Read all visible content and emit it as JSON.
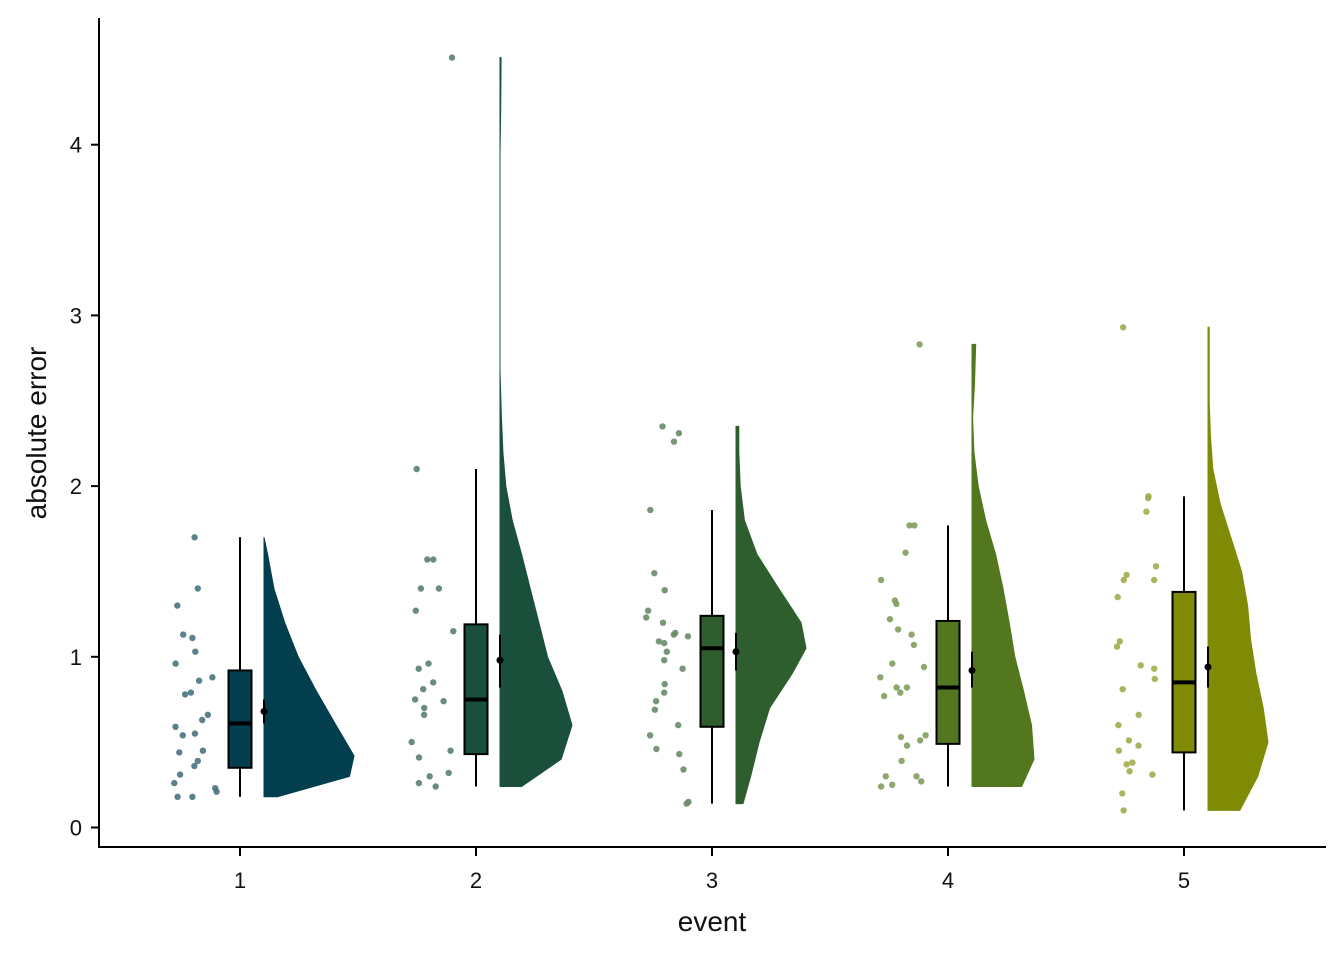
{
  "chart_data": {
    "type": "raincloud",
    "title": "",
    "xlabel": "event",
    "ylabel": "absolute error",
    "categories": [
      "1",
      "2",
      "3",
      "4",
      "5"
    ],
    "y_ticks": [
      "0",
      "1",
      "2",
      "3",
      "4"
    ],
    "ylim": [
      -0.12,
      4.75
    ],
    "grid": false,
    "legend": "none",
    "colors": [
      "#023e4d",
      "#1a4f3b",
      "#2f5e2e",
      "#52771f",
      "#7f8b05"
    ],
    "groups": [
      {
        "event": "1",
        "points": [
          1.7,
          1.4,
          1.3,
          1.13,
          1.11,
          1.03,
          0.96,
          0.88,
          0.86,
          0.79,
          0.78,
          0.66,
          0.63,
          0.59,
          0.55,
          0.54,
          0.45,
          0.44,
          0.39,
          0.36,
          0.31,
          0.26,
          0.23,
          0.21,
          0.18,
          0.18
        ],
        "box": {
          "min": 0.18,
          "q1": 0.35,
          "median": 0.61,
          "q3": 0.92,
          "max": 1.7
        },
        "mean": 0.68,
        "mean_ci": [
          0.61,
          0.75
        ],
        "density_profile": [
          [
            0.18,
            0.0
          ],
          [
            0.18,
            0.15
          ],
          [
            0.3,
            0.95
          ],
          [
            0.42,
            1.0
          ],
          [
            0.6,
            0.8
          ],
          [
            0.8,
            0.58
          ],
          [
            1.0,
            0.38
          ],
          [
            1.2,
            0.23
          ],
          [
            1.4,
            0.11
          ],
          [
            1.6,
            0.04
          ],
          [
            1.7,
            0.0
          ]
        ]
      },
      {
        "event": "2",
        "points": [
          4.51,
          2.1,
          1.57,
          1.57,
          1.4,
          1.4,
          1.27,
          1.15,
          0.96,
          0.93,
          0.85,
          0.81,
          0.75,
          0.74,
          0.7,
          0.66,
          0.5,
          0.45,
          0.41,
          0.32,
          0.3,
          0.26,
          0.24
        ],
        "box": {
          "min": 0.24,
          "q1": 0.43,
          "median": 0.75,
          "q3": 1.19,
          "max": 2.1
        },
        "mean": 0.98,
        "mean_ci": [
          0.82,
          1.13
        ],
        "density_profile": [
          [
            0.24,
            0.0
          ],
          [
            0.24,
            0.3
          ],
          [
            0.4,
            0.85
          ],
          [
            0.6,
            1.0
          ],
          [
            0.8,
            0.86
          ],
          [
            1.0,
            0.66
          ],
          [
            1.2,
            0.54
          ],
          [
            1.4,
            0.42
          ],
          [
            1.6,
            0.3
          ],
          [
            1.8,
            0.17
          ],
          [
            2.0,
            0.08
          ],
          [
            2.2,
            0.04
          ],
          [
            2.4,
            0.02
          ],
          [
            2.68,
            0.0
          ],
          [
            3.94,
            0.0
          ],
          [
            4.2,
            0.01
          ],
          [
            4.51,
            0.015
          ]
        ]
      },
      {
        "event": "3",
        "points": [
          2.35,
          2.31,
          2.26,
          1.86,
          1.49,
          1.39,
          1.27,
          1.23,
          1.2,
          1.14,
          1.13,
          1.12,
          1.09,
          1.08,
          1.03,
          0.98,
          0.93,
          0.84,
          0.79,
          0.74,
          0.69,
          0.6,
          0.54,
          0.46,
          0.43,
          0.34,
          0.15,
          0.14
        ],
        "box": {
          "min": 0.14,
          "q1": 0.59,
          "median": 1.05,
          "q3": 1.24,
          "max": 1.86
        },
        "mean": 1.03,
        "mean_ci": [
          0.92,
          1.14
        ],
        "density_profile": [
          [
            0.14,
            0.0
          ],
          [
            0.14,
            0.1
          ],
          [
            0.3,
            0.21
          ],
          [
            0.5,
            0.33
          ],
          [
            0.7,
            0.48
          ],
          [
            0.9,
            0.8
          ],
          [
            1.05,
            1.0
          ],
          [
            1.2,
            0.93
          ],
          [
            1.4,
            0.61
          ],
          [
            1.6,
            0.3
          ],
          [
            1.8,
            0.12
          ],
          [
            2.0,
            0.06
          ],
          [
            2.2,
            0.04
          ],
          [
            2.35,
            0.04
          ],
          [
            2.35,
            0.0
          ]
        ]
      },
      {
        "event": "4",
        "points": [
          2.83,
          1.77,
          1.77,
          1.61,
          1.45,
          1.33,
          1.31,
          1.22,
          1.16,
          1.13,
          1.07,
          0.96,
          0.94,
          0.88,
          0.82,
          0.82,
          0.79,
          0.77,
          0.54,
          0.53,
          0.51,
          0.48,
          0.39,
          0.3,
          0.3,
          0.27,
          0.25,
          0.24
        ],
        "box": {
          "min": 0.24,
          "q1": 0.49,
          "median": 0.82,
          "q3": 1.21,
          "max": 1.77
        },
        "mean": 0.92,
        "mean_ci": [
          0.82,
          1.03
        ],
        "density_profile": [
          [
            0.24,
            0.0
          ],
          [
            0.24,
            0.8
          ],
          [
            0.4,
            1.0
          ],
          [
            0.6,
            0.96
          ],
          [
            0.8,
            0.83
          ],
          [
            1.0,
            0.69
          ],
          [
            1.2,
            0.6
          ],
          [
            1.4,
            0.5
          ],
          [
            1.6,
            0.38
          ],
          [
            1.8,
            0.22
          ],
          [
            2.0,
            0.1
          ],
          [
            2.2,
            0.03
          ],
          [
            2.4,
            0.01
          ],
          [
            2.6,
            0.04
          ],
          [
            2.83,
            0.06
          ]
        ]
      },
      {
        "event": "5",
        "points": [
          2.93,
          1.94,
          1.93,
          1.85,
          1.53,
          1.48,
          1.45,
          1.45,
          1.35,
          1.09,
          1.06,
          0.95,
          0.93,
          0.87,
          0.81,
          0.66,
          0.6,
          0.51,
          0.48,
          0.45,
          0.38,
          0.37,
          0.33,
          0.31,
          0.2,
          0.1
        ],
        "box": {
          "min": 0.1,
          "q1": 0.44,
          "median": 0.85,
          "q3": 1.38,
          "max": 1.94
        },
        "mean": 0.94,
        "mean_ci": [
          0.82,
          1.06
        ],
        "density_profile": [
          [
            0.1,
            0.0
          ],
          [
            0.1,
            0.53
          ],
          [
            0.3,
            0.83
          ],
          [
            0.5,
            1.0
          ],
          [
            0.7,
            0.92
          ],
          [
            0.9,
            0.8
          ],
          [
            1.1,
            0.71
          ],
          [
            1.3,
            0.66
          ],
          [
            1.5,
            0.56
          ],
          [
            1.7,
            0.38
          ],
          [
            1.9,
            0.2
          ],
          [
            2.1,
            0.08
          ],
          [
            2.3,
            0.04
          ],
          [
            2.5,
            0.02
          ],
          [
            2.7,
            0.02
          ],
          [
            2.93,
            0.02
          ]
        ]
      }
    ]
  }
}
